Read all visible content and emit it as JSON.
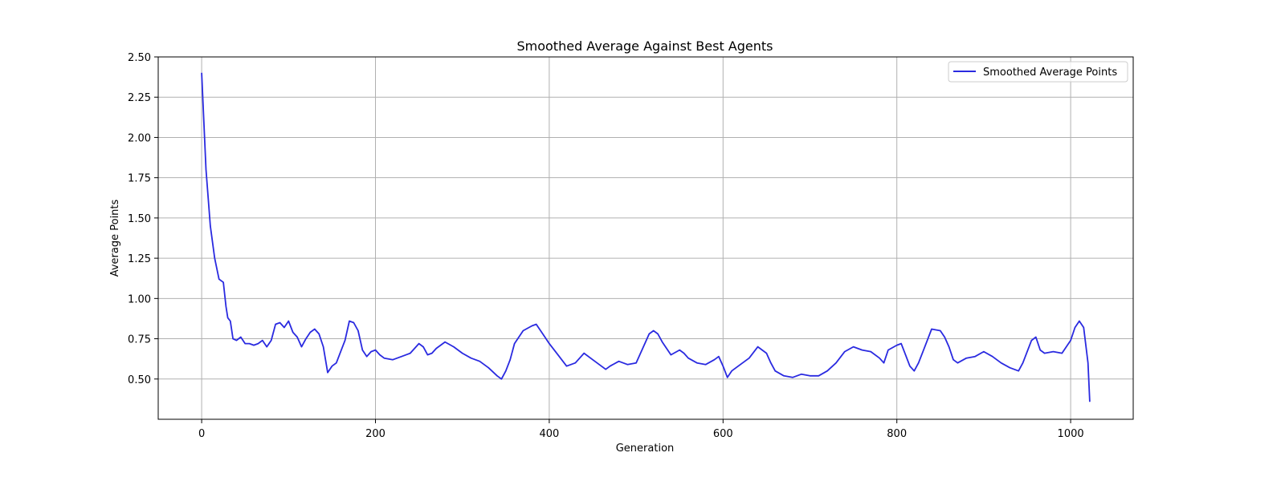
{
  "chart_data": {
    "type": "line",
    "title": "Smoothed Average Against Best Agents",
    "xlabel": "Generation",
    "ylabel": "Average Points",
    "xlim": [
      -50,
      1072
    ],
    "ylim": [
      0.25,
      2.5
    ],
    "xticks": [
      "0",
      "200",
      "400",
      "600",
      "800",
      "1000"
    ],
    "yticks": [
      "0.50",
      "0.75",
      "1.00",
      "1.25",
      "1.50",
      "1.75",
      "2.00",
      "2.25",
      "2.50"
    ],
    "grid": true,
    "legend_position": "upper right",
    "series": [
      {
        "name": "Smoothed Average Points",
        "color": "#2a2ae0",
        "x": [
          0,
          5,
          10,
          15,
          20,
          25,
          28,
          30,
          33,
          36,
          40,
          45,
          50,
          55,
          60,
          65,
          70,
          75,
          80,
          85,
          90,
          95,
          100,
          105,
          110,
          115,
          120,
          125,
          130,
          135,
          140,
          145,
          150,
          155,
          160,
          165,
          170,
          175,
          180,
          185,
          190,
          195,
          200,
          205,
          210,
          220,
          230,
          240,
          250,
          255,
          260,
          265,
          270,
          280,
          290,
          300,
          310,
          320,
          330,
          340,
          345,
          350,
          355,
          360,
          370,
          380,
          385,
          390,
          395,
          400,
          410,
          420,
          430,
          440,
          450,
          460,
          465,
          470,
          480,
          490,
          500,
          510,
          515,
          520,
          525,
          530,
          540,
          550,
          555,
          560,
          570,
          580,
          590,
          595,
          600,
          605,
          610,
          620,
          630,
          640,
          650,
          655,
          660,
          670,
          680,
          690,
          700,
          710,
          720,
          730,
          740,
          750,
          760,
          770,
          780,
          785,
          790,
          800,
          805,
          810,
          815,
          820,
          825,
          830,
          835,
          840,
          850,
          855,
          860,
          865,
          870,
          880,
          890,
          900,
          910,
          920,
          930,
          935,
          940,
          945,
          950,
          955,
          960,
          965,
          970,
          980,
          990,
          1000,
          1005,
          1010,
          1015,
          1020,
          1022
        ],
        "y": [
          2.4,
          1.8,
          1.45,
          1.25,
          1.12,
          1.1,
          0.95,
          0.88,
          0.86,
          0.75,
          0.74,
          0.76,
          0.72,
          0.72,
          0.71,
          0.72,
          0.74,
          0.7,
          0.74,
          0.84,
          0.85,
          0.82,
          0.86,
          0.79,
          0.76,
          0.7,
          0.75,
          0.79,
          0.81,
          0.78,
          0.7,
          0.54,
          0.58,
          0.6,
          0.67,
          0.74,
          0.86,
          0.85,
          0.8,
          0.68,
          0.64,
          0.67,
          0.68,
          0.65,
          0.63,
          0.62,
          0.64,
          0.66,
          0.72,
          0.7,
          0.65,
          0.66,
          0.69,
          0.73,
          0.7,
          0.66,
          0.63,
          0.61,
          0.57,
          0.52,
          0.5,
          0.55,
          0.62,
          0.72,
          0.8,
          0.83,
          0.84,
          0.8,
          0.76,
          0.72,
          0.65,
          0.58,
          0.6,
          0.66,
          0.62,
          0.58,
          0.56,
          0.58,
          0.61,
          0.59,
          0.6,
          0.72,
          0.78,
          0.8,
          0.78,
          0.73,
          0.65,
          0.68,
          0.66,
          0.63,
          0.6,
          0.59,
          0.62,
          0.64,
          0.58,
          0.51,
          0.55,
          0.59,
          0.63,
          0.7,
          0.66,
          0.6,
          0.55,
          0.52,
          0.51,
          0.53,
          0.52,
          0.52,
          0.55,
          0.6,
          0.67,
          0.7,
          0.68,
          0.67,
          0.63,
          0.6,
          0.68,
          0.71,
          0.72,
          0.65,
          0.58,
          0.55,
          0.6,
          0.67,
          0.74,
          0.81,
          0.8,
          0.76,
          0.7,
          0.62,
          0.6,
          0.63,
          0.64,
          0.67,
          0.64,
          0.6,
          0.57,
          0.56,
          0.55,
          0.6,
          0.67,
          0.74,
          0.76,
          0.68,
          0.66,
          0.67,
          0.66,
          0.74,
          0.82,
          0.86,
          0.82,
          0.6,
          0.36
        ]
      }
    ]
  }
}
